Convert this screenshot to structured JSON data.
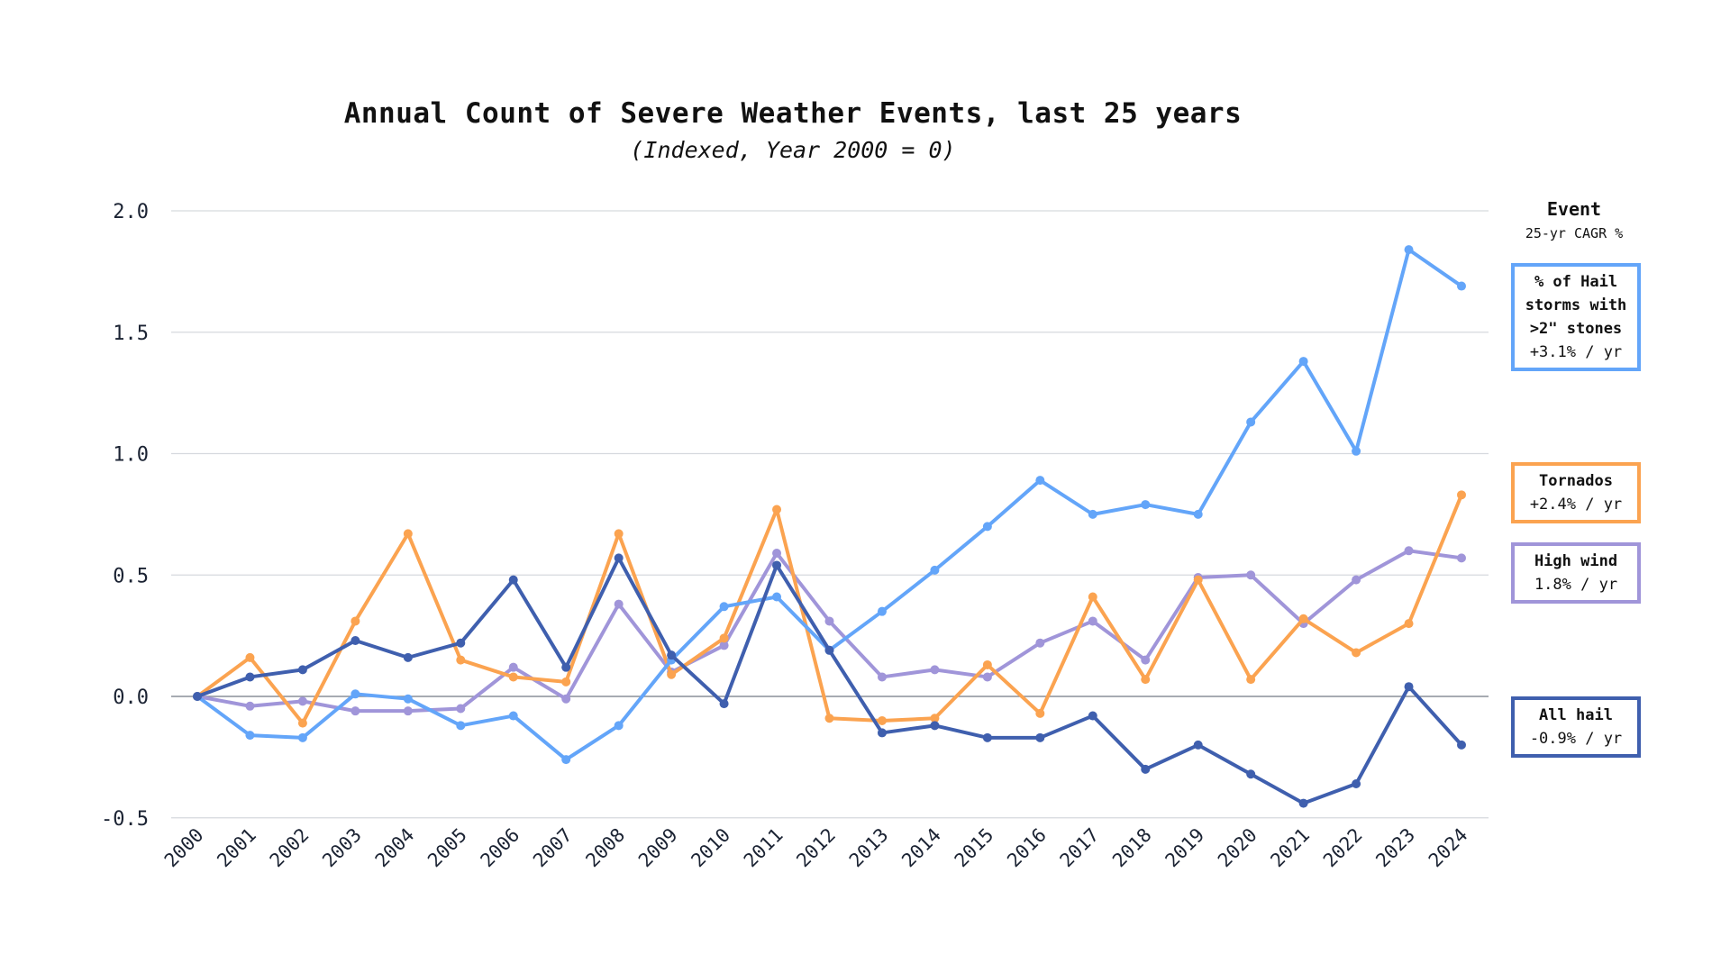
{
  "chart_data": {
    "type": "line",
    "title": "Annual Count of Severe Weather Events, last 25 years",
    "subtitle": "(Indexed, Year 2000 = 0)",
    "x": [
      "2000",
      "2001",
      "2002",
      "2003",
      "2004",
      "2005",
      "2006",
      "2007",
      "2008",
      "2009",
      "2010",
      "2011",
      "2012",
      "2013",
      "2014",
      "2015",
      "2016",
      "2017",
      "2018",
      "2019",
      "2020",
      "2021",
      "2022",
      "2023",
      "2024"
    ],
    "ylim": [
      -0.5,
      2.0
    ],
    "yticks": [
      "2.0",
      "1.5",
      "1.0",
      "0.5",
      "0.0",
      "-0.5"
    ],
    "grid": true,
    "legend": {
      "title": "Event",
      "subtitle": "25-yr CAGR %",
      "placement": "right"
    },
    "series": [
      {
        "name": "% of Hail storms with >2\" stones",
        "rate": "+3.1% / yr",
        "color": "#63a5f9",
        "values": [
          0,
          -0.16,
          -0.17,
          0.01,
          -0.01,
          -0.12,
          -0.08,
          -0.26,
          -0.12,
          0.15,
          0.37,
          0.41,
          0.19,
          0.35,
          0.52,
          0.7,
          0.89,
          0.75,
          0.79,
          0.75,
          1.13,
          1.38,
          1.01,
          1.84,
          1.69
        ]
      },
      {
        "name": "Tornados",
        "rate": "+2.4% / yr",
        "color": "#fba350",
        "values": [
          0,
          0.16,
          -0.11,
          0.31,
          0.67,
          0.15,
          0.08,
          0.06,
          0.67,
          0.09,
          0.24,
          0.77,
          -0.09,
          -0.1,
          -0.09,
          0.13,
          -0.07,
          0.41,
          0.07,
          0.48,
          0.07,
          0.32,
          0.18,
          0.3,
          0.83
        ]
      },
      {
        "name": "High wind",
        "rate": "1.8% / yr",
        "color": "#a095d9",
        "values": [
          0,
          -0.04,
          -0.02,
          -0.06,
          -0.06,
          -0.05,
          0.12,
          -0.01,
          0.38,
          0.1,
          0.21,
          0.59,
          0.31,
          0.08,
          0.11,
          0.08,
          0.22,
          0.31,
          0.15,
          0.49,
          0.5,
          0.3,
          0.48,
          0.6,
          0.57
        ]
      },
      {
        "name": "All hail",
        "rate": "-0.9% / yr",
        "color": "#3f5fae",
        "values": [
          0,
          0.08,
          0.11,
          0.23,
          0.16,
          0.22,
          0.48,
          0.12,
          0.57,
          0.17,
          -0.03,
          0.54,
          0.19,
          -0.15,
          -0.12,
          -0.17,
          -0.17,
          -0.08,
          -0.3,
          -0.2,
          -0.32,
          -0.44,
          -0.36,
          0.04,
          -0.2
        ]
      }
    ]
  }
}
